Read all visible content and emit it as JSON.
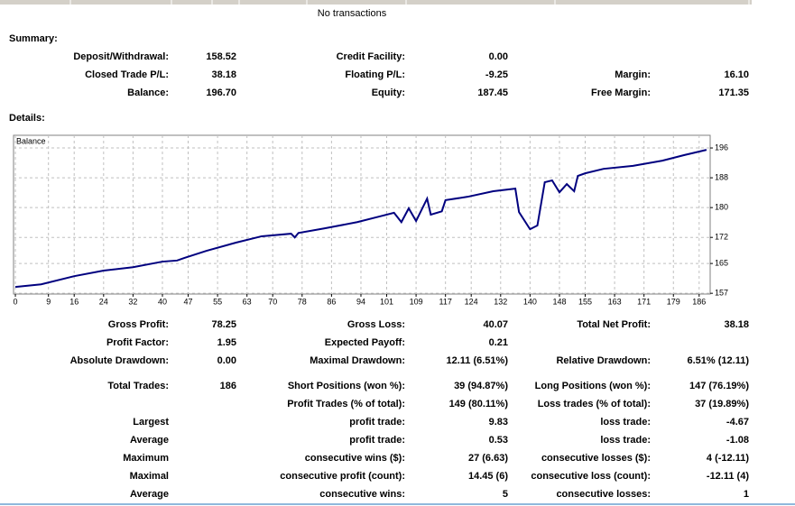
{
  "top_note": "No transactions",
  "summary": {
    "title": "Summary:",
    "rows": [
      [
        "Deposit/Withdrawal:",
        "158.52",
        "Credit Facility:",
        "0.00",
        null,
        null
      ],
      [
        "Closed Trade P/L:",
        "38.18",
        "Floating P/L:",
        "-9.25",
        "Margin:",
        "16.10"
      ],
      [
        "Balance:",
        "196.70",
        "Equity:",
        "187.45",
        "Free Margin:",
        "171.35"
      ]
    ]
  },
  "details": {
    "title": "Details:",
    "rows": [
      [
        "Gross Profit:",
        "78.25",
        "Gross Loss:",
        "40.07",
        "Total Net Profit:",
        "38.18"
      ],
      [
        "Profit Factor:",
        "1.95",
        "Expected Payoff:",
        "0.21",
        null,
        null
      ],
      [
        "Absolute Drawdown:",
        "0.00",
        "Maximal Drawdown:",
        "12.11 (6.51%)",
        "Relative Drawdown:",
        "6.51% (12.11)"
      ],
      [
        "Total Trades:",
        "186",
        "Short Positions (won %):",
        "39 (94.87%)",
        "Long Positions (won %):",
        "147 (76.19%)"
      ],
      [
        null,
        null,
        "Profit Trades (% of total):",
        "149 (80.11%)",
        "Loss trades (% of total):",
        "37 (19.89%)"
      ],
      [
        "Largest",
        null,
        "profit trade:",
        "9.83",
        "loss trade:",
        "-4.67"
      ],
      [
        "Average",
        null,
        "profit trade:",
        "0.53",
        "loss trade:",
        "-1.08"
      ],
      [
        "Maximum",
        null,
        "consecutive wins ($):",
        "27 (6.63)",
        "consecutive losses ($):",
        "4 (-12.11)"
      ],
      [
        "Maximal",
        null,
        "consecutive profit (count):",
        "14.45 (6)",
        "consecutive loss (count):",
        "-12.11 (4)"
      ],
      [
        "Average",
        null,
        "consecutive wins:",
        "5",
        "consecutive losses:",
        "1"
      ]
    ]
  },
  "chart_data": {
    "type": "line",
    "title": "Balance",
    "grid": true,
    "x": [
      0,
      7,
      16,
      24,
      32,
      40,
      44,
      46,
      52,
      60,
      67,
      75,
      76,
      77,
      84,
      93,
      99,
      103,
      105,
      107,
      109,
      112,
      113,
      116,
      117,
      123,
      130,
      136,
      137,
      140,
      142,
      144,
      146,
      148,
      150,
      152,
      153,
      155,
      160,
      168,
      176,
      182,
      188
    ],
    "series": [
      {
        "name": "Balance",
        "color": "#00007f",
        "values": [
          158.7,
          159.4,
          161.6,
          163.1,
          164.0,
          165.5,
          165.8,
          166.5,
          168.4,
          170.6,
          172.3,
          173.0,
          172.0,
          173.2,
          174.4,
          176.1,
          177.6,
          178.6,
          176.1,
          179.8,
          176.4,
          182.4,
          178.1,
          179.0,
          182.0,
          182.9,
          184.4,
          185.1,
          178.8,
          174.2,
          175.2,
          186.8,
          187.3,
          184.1,
          186.3,
          184.4,
          188.5,
          189.2,
          190.4,
          191.2,
          192.6,
          194.1,
          195.5
        ]
      }
    ],
    "xlim": [
      -0.5,
      189
    ],
    "ylim": [
      156.8,
      199.4
    ],
    "xticks": [
      0,
      9,
      16,
      24,
      32,
      40,
      47,
      55,
      63,
      70,
      78,
      86,
      94,
      101,
      109,
      117,
      124,
      132,
      140,
      148,
      155,
      163,
      171,
      179,
      186
    ],
    "yticks": [
      157,
      165,
      172,
      180,
      188,
      196
    ]
  }
}
